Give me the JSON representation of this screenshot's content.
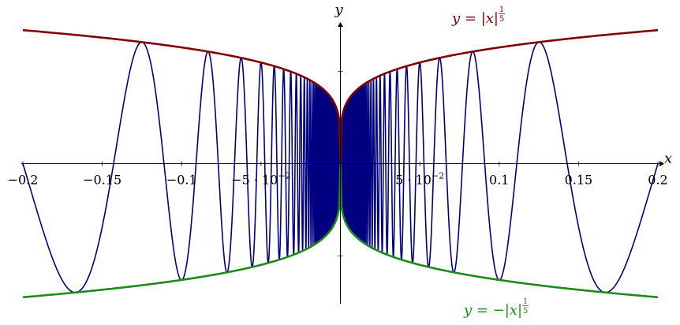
{
  "chart_data": {
    "type": "line",
    "title": "",
    "xlabel": "x",
    "ylabel": "y",
    "xlim": [
      -0.2,
      0.2
    ],
    "ylim": [
      -0.76,
      0.76
    ],
    "grid": false,
    "x_ticks": [
      {
        "value": -0.2,
        "label": "−0.2"
      },
      {
        "value": -0.15,
        "label": "−0.15"
      },
      {
        "value": -0.1,
        "label": "−0.1"
      },
      {
        "value": -0.05,
        "label": "−5 · 10",
        "exp": "−2"
      },
      {
        "value": 0.05,
        "label": "5 · 10",
        "exp": "−2"
      },
      {
        "value": 0.1,
        "label": "0.1"
      },
      {
        "value": 0.15,
        "label": "0.15"
      },
      {
        "value": 0.2,
        "label": "0.2"
      }
    ],
    "y_ticks": [
      -0.5,
      0.5
    ],
    "series": [
      {
        "function": "|x|^(1/5)",
        "color": "#7f0000",
        "x_range": [
          -0.2,
          0.2
        ]
      },
      {
        "function": "-|x|^(1/5)",
        "color": "#1a8a1a",
        "x_range": [
          -0.2,
          0.2
        ]
      },
      {
        "function": "|x|^(1/5) * cos(pi/(2x))",
        "color": "#000080",
        "x_range": [
          -0.2,
          0.2
        ]
      }
    ],
    "annotations": [
      {
        "prefix": "y",
        "middle": " = |",
        "var": "x",
        "suffix": "|",
        "exp_num": "1",
        "exp_den": "5",
        "color": "#7f0000"
      },
      {
        "prefix": "y",
        "middle": " = −|",
        "var": "x",
        "suffix": "|",
        "exp_num": "1",
        "exp_den": "5",
        "color": "#1a8a1a"
      }
    ]
  }
}
